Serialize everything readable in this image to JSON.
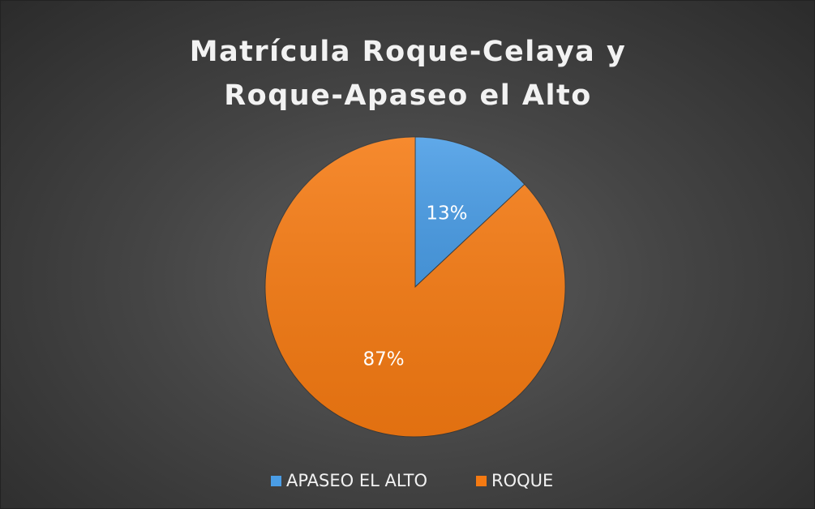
{
  "chart_data": {
    "type": "pie",
    "title": "Matrícula Roque-Celaya y Roque-Apaseo el Alto",
    "categories": [
      "APASEO EL ALTO",
      "ROQUE"
    ],
    "values": [
      13,
      87
    ],
    "value_labels": [
      "13%",
      "87%"
    ],
    "colors": [
      "#4a9de6",
      "#f57a12"
    ],
    "legend": "bottom"
  }
}
